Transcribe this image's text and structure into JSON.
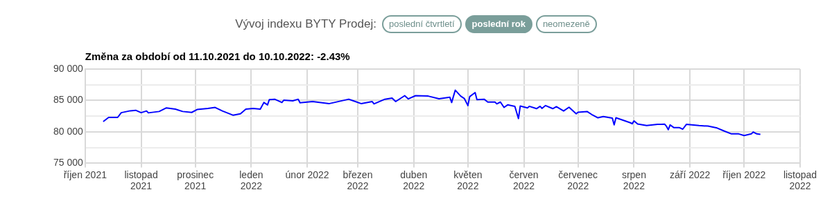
{
  "chart_data": {
    "type": "line",
    "title": "Vývoj indexu BYTY Prodej:",
    "subtitle": "Změna za období od 11.10.2021 do 10.10.2022: -2.43%",
    "annotations": [
      "poslední čtvrtletí",
      "poslední rok",
      "neomezeně"
    ],
    "x": [
      "2021-10-11",
      "2021-10-14",
      "2021-10-19",
      "2021-10-21",
      "2021-10-26",
      "2021-10-29",
      "2021-11-01",
      "2021-11-04",
      "2021-11-05",
      "2021-11-11",
      "2021-11-15",
      "2021-11-20",
      "2021-11-24",
      "2021-11-29",
      "2021-12-02",
      "2021-12-08",
      "2021-12-12",
      "2021-12-16",
      "2021-12-22",
      "2021-12-26",
      "2021-12-29",
      "2022-01-02",
      "2022-01-06",
      "2022-01-08",
      "2022-01-10",
      "2022-01-11",
      "2022-01-14",
      "2022-01-18",
      "2022-01-19",
      "2022-01-24",
      "2022-01-27",
      "2022-01-28",
      "2022-02-04",
      "2022-02-13",
      "2022-02-24",
      "2022-03-03",
      "2022-03-09",
      "2022-03-10",
      "2022-03-16",
      "2022-03-20",
      "2022-03-22",
      "2022-03-27",
      "2022-03-29",
      "2022-04-02",
      "2022-04-09",
      "2022-04-15",
      "2022-04-21",
      "2022-04-22",
      "2022-04-24",
      "2022-04-27",
      "2022-04-29",
      "2022-05-01",
      "2022-05-02",
      "2022-05-05",
      "2022-05-06",
      "2022-05-10",
      "2022-05-12",
      "2022-05-16",
      "2022-05-17",
      "2022-05-19",
      "2022-05-21",
      "2022-05-23",
      "2022-05-27",
      "2022-05-29",
      "2022-05-30",
      "2022-06-03",
      "2022-06-04",
      "2022-06-08",
      "2022-06-10",
      "2022-06-11",
      "2022-06-13",
      "2022-06-17",
      "2022-06-19",
      "2022-06-23",
      "2022-06-26",
      "2022-06-30",
      "2022-07-01",
      "2022-07-06",
      "2022-07-09",
      "2022-07-12",
      "2022-07-15",
      "2022-07-20",
      "2022-07-21",
      "2022-07-22",
      "2022-07-27",
      "2022-07-30",
      "2022-07-31",
      "2022-08-01",
      "2022-08-03",
      "2022-08-08",
      "2022-08-14",
      "2022-08-16",
      "2022-08-18",
      "2022-08-19",
      "2022-08-20",
      "2022-08-21",
      "2022-08-23",
      "2022-08-26",
      "2022-08-28",
      "2022-08-30",
      "2022-09-06",
      "2022-09-11",
      "2022-09-16",
      "2022-09-20",
      "2022-09-24",
      "2022-09-28",
      "2022-10-01",
      "2022-10-05",
      "2022-10-06",
      "2022-10-08",
      "2022-10-10"
    ],
    "series": [
      {
        "color": "#0000ff",
        "values": [
          81640,
          82300,
          82300,
          83060,
          83360,
          83440,
          83060,
          83330,
          83030,
          83250,
          83820,
          83620,
          83250,
          83100,
          83560,
          83740,
          83890,
          83330,
          82650,
          82880,
          83620,
          83740,
          83620,
          84680,
          84300,
          85130,
          85200,
          84680,
          85050,
          84940,
          85200,
          84640,
          84830,
          84490,
          85200,
          84490,
          84830,
          84460,
          85200,
          85390,
          84830,
          85770,
          85250,
          85770,
          85700,
          85280,
          85510,
          84680,
          86640,
          85700,
          85320,
          84190,
          85620,
          86260,
          85130,
          85200,
          84750,
          84750,
          84460,
          84750,
          83890,
          84300,
          84070,
          82120,
          84120,
          83820,
          84070,
          83700,
          84070,
          83740,
          84190,
          83700,
          84010,
          83330,
          83930,
          82880,
          83140,
          83250,
          82690,
          82240,
          82430,
          82200,
          81110,
          82240,
          81750,
          81450,
          81300,
          81750,
          81260,
          81000,
          81190,
          81190,
          81220,
          80880,
          80350,
          81110,
          80690,
          80690,
          80430,
          81190,
          81000,
          80920,
          80620,
          80130,
          79680,
          79680,
          79420,
          79680,
          79980,
          79680,
          79610
        ]
      }
    ],
    "xlim": [
      "2021-10",
      "2022-11"
    ],
    "xticks": [
      {
        "value": "2021-10",
        "label": "říjen 2021"
      },
      {
        "value": "2021-11",
        "label": "listopad 2021"
      },
      {
        "value": "2021-12",
        "label": "prosinec 2021"
      },
      {
        "value": "2022-01",
        "label": "leden 2022"
      },
      {
        "value": "2022-02",
        "label": "únor 2022"
      },
      {
        "value": "2022-03",
        "label": "březen 2022"
      },
      {
        "value": "2022-04",
        "label": "duben 2022"
      },
      {
        "value": "2022-05",
        "label": "květen 2022"
      },
      {
        "value": "2022-06",
        "label": "červen 2022"
      },
      {
        "value": "2022-07",
        "label": "červenec 2022"
      },
      {
        "value": "2022-08",
        "label": "srpen 2022"
      },
      {
        "value": "2022-09",
        "label": "září 2022"
      },
      {
        "value": "2022-10",
        "label": "říjen 2022"
      },
      {
        "value": "2022-11",
        "label": "listopad 2022"
      }
    ],
    "ylim": [
      75000,
      90000
    ],
    "yticks": [
      {
        "value": 75000,
        "label": "75 000"
      },
      {
        "value": 77500,
        "label": null
      },
      {
        "value": 80000,
        "label": "80 000"
      },
      {
        "value": 82500,
        "label": null
      },
      {
        "value": 85000,
        "label": "85 000"
      },
      {
        "value": 87500,
        "label": null
      },
      {
        "value": 90000,
        "label": "90 000"
      }
    ],
    "grid": true,
    "legend": false,
    "marker": "none",
    "line_style": "solid"
  }
}
